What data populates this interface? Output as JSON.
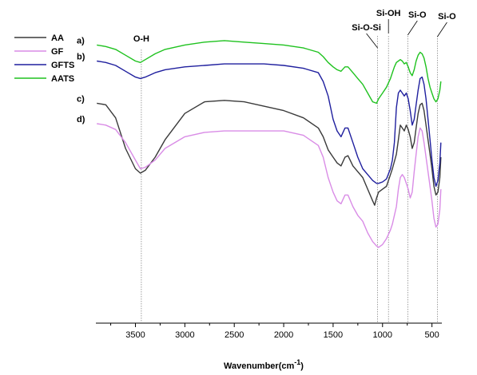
{
  "chart_data": {
    "type": "line",
    "title": "",
    "xlabel": "Wavenumber(cm",
    "xlabel_sup": "-1",
    "xlabel_tail": ")",
    "ylabel": "",
    "xlim": [
      3900,
      400
    ],
    "x_reversed": true,
    "ylim": [
      0,
      100
    ],
    "x_ticks": [
      3500,
      3000,
      2500,
      2000,
      1500,
      1000,
      500
    ],
    "grid": false,
    "legend": {
      "placement": "top-left"
    },
    "series": [
      {
        "name": "AA",
        "color": "#3a3a3a",
        "label": "c)",
        "points": [
          [
            3890,
            75.5
          ],
          [
            3800,
            75
          ],
          [
            3700,
            70.5
          ],
          [
            3600,
            60
          ],
          [
            3500,
            53
          ],
          [
            3450,
            51.5
          ],
          [
            3400,
            52.5
          ],
          [
            3300,
            57
          ],
          [
            3200,
            63
          ],
          [
            3000,
            72
          ],
          [
            2800,
            76
          ],
          [
            2600,
            76.5
          ],
          [
            2400,
            76
          ],
          [
            2200,
            74.5
          ],
          [
            2000,
            73
          ],
          [
            1800,
            70.5
          ],
          [
            1650,
            67
          ],
          [
            1600,
            64
          ],
          [
            1550,
            59.5
          ],
          [
            1500,
            57
          ],
          [
            1460,
            55
          ],
          [
            1420,
            54
          ],
          [
            1380,
            57
          ],
          [
            1350,
            57.5
          ],
          [
            1300,
            54
          ],
          [
            1250,
            52
          ],
          [
            1200,
            50
          ],
          [
            1150,
            46
          ],
          [
            1100,
            42
          ],
          [
            1080,
            40.5
          ],
          [
            1060,
            43
          ],
          [
            1040,
            45
          ],
          [
            1000,
            46
          ],
          [
            960,
            47
          ],
          [
            920,
            51
          ],
          [
            900,
            53
          ],
          [
            860,
            58
          ],
          [
            840,
            63
          ],
          [
            820,
            68
          ],
          [
            800,
            67
          ],
          [
            780,
            66
          ],
          [
            760,
            68
          ],
          [
            740,
            66.5
          ],
          [
            720,
            64
          ],
          [
            700,
            60
          ],
          [
            680,
            62
          ],
          [
            660,
            67
          ],
          [
            640,
            72
          ],
          [
            620,
            75
          ],
          [
            600,
            75.5
          ],
          [
            580,
            73
          ],
          [
            560,
            68
          ],
          [
            540,
            63
          ],
          [
            520,
            58
          ],
          [
            500,
            53
          ],
          [
            480,
            47
          ],
          [
            460,
            44
          ],
          [
            440,
            45
          ],
          [
            420,
            50
          ],
          [
            410,
            57
          ]
        ]
      },
      {
        "name": "GF",
        "color": "#d98ce6",
        "label": "d)",
        "points": [
          [
            3890,
            68.5
          ],
          [
            3800,
            68
          ],
          [
            3700,
            66.5
          ],
          [
            3600,
            62
          ],
          [
            3500,
            56
          ],
          [
            3450,
            53
          ],
          [
            3400,
            53.5
          ],
          [
            3300,
            56
          ],
          [
            3200,
            60
          ],
          [
            3000,
            64
          ],
          [
            2800,
            65.5
          ],
          [
            2600,
            66
          ],
          [
            2400,
            66
          ],
          [
            2200,
            66
          ],
          [
            2000,
            66
          ],
          [
            1800,
            64.5
          ],
          [
            1650,
            61
          ],
          [
            1600,
            57
          ],
          [
            1550,
            50
          ],
          [
            1500,
            45
          ],
          [
            1460,
            42
          ],
          [
            1420,
            41
          ],
          [
            1380,
            44
          ],
          [
            1350,
            44
          ],
          [
            1300,
            40
          ],
          [
            1250,
            37
          ],
          [
            1200,
            35
          ],
          [
            1150,
            31
          ],
          [
            1100,
            28
          ],
          [
            1060,
            26.5
          ],
          [
            1040,
            26
          ],
          [
            1000,
            27
          ],
          [
            960,
            29
          ],
          [
            920,
            32
          ],
          [
            900,
            34
          ],
          [
            860,
            40
          ],
          [
            840,
            46
          ],
          [
            820,
            50
          ],
          [
            800,
            51
          ],
          [
            780,
            50
          ],
          [
            760,
            48
          ],
          [
            740,
            46
          ],
          [
            720,
            43
          ],
          [
            700,
            45
          ],
          [
            680,
            52
          ],
          [
            660,
            58
          ],
          [
            640,
            64
          ],
          [
            620,
            67
          ],
          [
            600,
            66
          ],
          [
            580,
            62
          ],
          [
            560,
            57
          ],
          [
            540,
            52
          ],
          [
            520,
            47
          ],
          [
            500,
            42
          ],
          [
            480,
            36
          ],
          [
            460,
            33
          ],
          [
            440,
            34
          ],
          [
            420,
            39
          ],
          [
            410,
            46
          ]
        ]
      },
      {
        "name": "GFTS",
        "color": "#1f1f9e",
        "label": "b)",
        "points": [
          [
            3890,
            90
          ],
          [
            3800,
            89.5
          ],
          [
            3700,
            88.5
          ],
          [
            3600,
            86.5
          ],
          [
            3500,
            84.5
          ],
          [
            3450,
            84
          ],
          [
            3400,
            84.5
          ],
          [
            3300,
            86
          ],
          [
            3200,
            87
          ],
          [
            3000,
            88
          ],
          [
            2800,
            88.5
          ],
          [
            2600,
            89
          ],
          [
            2400,
            89
          ],
          [
            2200,
            89
          ],
          [
            2000,
            88.5
          ],
          [
            1800,
            87.5
          ],
          [
            1650,
            86
          ],
          [
            1600,
            83
          ],
          [
            1550,
            78
          ],
          [
            1500,
            70
          ],
          [
            1460,
            66
          ],
          [
            1420,
            64
          ],
          [
            1380,
            67
          ],
          [
            1350,
            67
          ],
          [
            1300,
            62
          ],
          [
            1250,
            57
          ],
          [
            1200,
            53
          ],
          [
            1150,
            51
          ],
          [
            1100,
            49
          ],
          [
            1060,
            48
          ],
          [
            1040,
            48
          ],
          [
            1000,
            48.5
          ],
          [
            960,
            49.5
          ],
          [
            920,
            53
          ],
          [
            900,
            56
          ],
          [
            880,
            62
          ],
          [
            860,
            74
          ],
          [
            840,
            79
          ],
          [
            820,
            80
          ],
          [
            800,
            79
          ],
          [
            780,
            78
          ],
          [
            760,
            79
          ],
          [
            740,
            77
          ],
          [
            720,
            73
          ],
          [
            700,
            68
          ],
          [
            680,
            70
          ],
          [
            660,
            75
          ],
          [
            640,
            80
          ],
          [
            620,
            84
          ],
          [
            600,
            84.5
          ],
          [
            580,
            82
          ],
          [
            560,
            77
          ],
          [
            540,
            70
          ],
          [
            520,
            63
          ],
          [
            500,
            56
          ],
          [
            480,
            50
          ],
          [
            460,
            47
          ],
          [
            440,
            49
          ],
          [
            420,
            55
          ],
          [
            410,
            62
          ]
        ]
      },
      {
        "name": "AATS",
        "color": "#1fc21f",
        "label": "a)",
        "points": [
          [
            3890,
            95.5
          ],
          [
            3800,
            95
          ],
          [
            3700,
            94
          ],
          [
            3600,
            92
          ],
          [
            3500,
            90
          ],
          [
            3450,
            89.5
          ],
          [
            3400,
            90.5
          ],
          [
            3300,
            92.5
          ],
          [
            3200,
            94
          ],
          [
            3000,
            95.5
          ],
          [
            2800,
            96.5
          ],
          [
            2600,
            97
          ],
          [
            2400,
            96.5
          ],
          [
            2200,
            96
          ],
          [
            2000,
            95.5
          ],
          [
            1800,
            94.5
          ],
          [
            1650,
            93
          ],
          [
            1600,
            91.5
          ],
          [
            1550,
            89.5
          ],
          [
            1500,
            88
          ],
          [
            1460,
            87
          ],
          [
            1420,
            86.5
          ],
          [
            1380,
            88
          ],
          [
            1350,
            88
          ],
          [
            1300,
            86
          ],
          [
            1250,
            84
          ],
          [
            1200,
            82
          ],
          [
            1150,
            79
          ],
          [
            1100,
            76
          ],
          [
            1060,
            75.5
          ],
          [
            1040,
            77
          ],
          [
            1000,
            79
          ],
          [
            960,
            81
          ],
          [
            920,
            84
          ],
          [
            900,
            86
          ],
          [
            880,
            88
          ],
          [
            860,
            89.5
          ],
          [
            840,
            90
          ],
          [
            820,
            90.5
          ],
          [
            800,
            90
          ],
          [
            780,
            89
          ],
          [
            760,
            89.5
          ],
          [
            740,
            88
          ],
          [
            720,
            86
          ],
          [
            700,
            85
          ],
          [
            680,
            87
          ],
          [
            660,
            90
          ],
          [
            640,
            92
          ],
          [
            620,
            93
          ],
          [
            600,
            92.5
          ],
          [
            580,
            91
          ],
          [
            560,
            88
          ],
          [
            540,
            84
          ],
          [
            520,
            81
          ],
          [
            500,
            79
          ],
          [
            480,
            77
          ],
          [
            460,
            76
          ],
          [
            440,
            77
          ],
          [
            420,
            80
          ],
          [
            410,
            83
          ]
        ]
      }
    ],
    "annotations": [
      {
        "text": "O-H",
        "x": 3440
      },
      {
        "text": "Si-O-Si",
        "x": 1050
      },
      {
        "text": "Si-OH",
        "x": 940
      },
      {
        "text": "Si-O",
        "x": 745
      },
      {
        "text": "Si-O",
        "x": 445
      }
    ]
  }
}
